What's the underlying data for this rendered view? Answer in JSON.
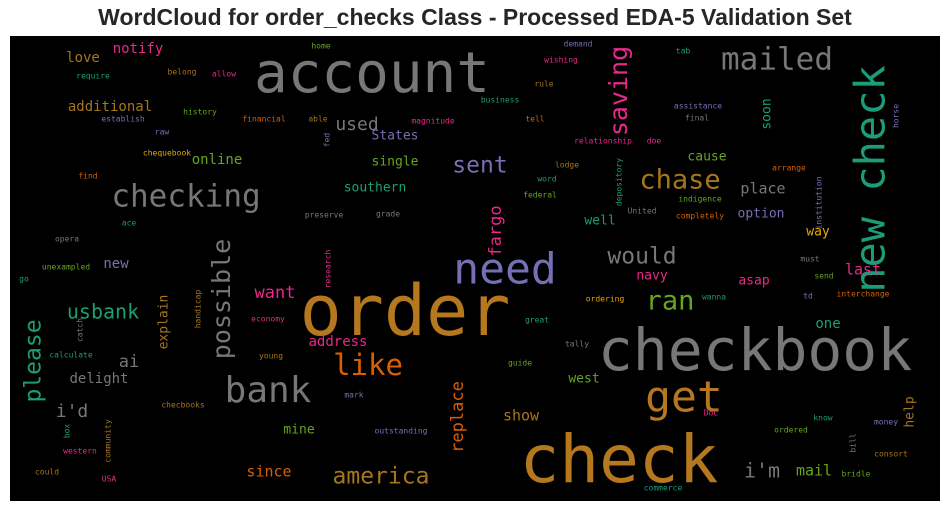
{
  "colors": {
    "background": "#000000",
    "title": "#262626",
    "gray": "#777777",
    "golden": "#b5781f",
    "green": "#1b9e77",
    "purple": "#7570b3",
    "magenta": "#e7298a",
    "orange": "#d95f02",
    "lime": "#66a61e",
    "yellow": "#e6ab02",
    "brown": "#a6761d"
  },
  "chart_data": {
    "type": "wordcloud",
    "title": "WordCloud for order_checks Class - Processed EDA-5 Validation Set",
    "words": [
      {
        "text": "order",
        "weight": 1.0,
        "color": "golden"
      },
      {
        "text": "checkbook",
        "weight": 0.92,
        "color": "gray"
      },
      {
        "text": "check",
        "weight": 0.96,
        "color": "golden"
      },
      {
        "text": "account",
        "weight": 0.88,
        "color": "gray"
      },
      {
        "text": "need",
        "weight": 0.72,
        "color": "purple"
      },
      {
        "text": "new check",
        "weight": 0.66,
        "color": "green"
      },
      {
        "text": "get",
        "weight": 0.62,
        "color": "golden"
      },
      {
        "text": "bank",
        "weight": 0.6,
        "color": "gray"
      },
      {
        "text": "checking",
        "weight": 0.5,
        "color": "gray"
      },
      {
        "text": "mailed",
        "weight": 0.5,
        "color": "gray"
      },
      {
        "text": "like",
        "weight": 0.44,
        "color": "orange"
      },
      {
        "text": "chase",
        "weight": 0.42,
        "color": "brown"
      },
      {
        "text": "ran",
        "weight": 0.42,
        "color": "lime"
      },
      {
        "text": "saving",
        "weight": 0.4,
        "color": "magenta"
      },
      {
        "text": "possible",
        "weight": 0.38,
        "color": "gray"
      },
      {
        "text": "please",
        "weight": 0.38,
        "color": "green"
      },
      {
        "text": "would",
        "weight": 0.36,
        "color": "gray"
      },
      {
        "text": "america",
        "weight": 0.36,
        "color": "brown"
      },
      {
        "text": "sent",
        "weight": 0.34,
        "color": "purple"
      },
      {
        "text": "usbank",
        "weight": 0.3,
        "color": "green"
      },
      {
        "text": "i'm",
        "weight": 0.3,
        "color": "gray"
      },
      {
        "text": "used",
        "weight": 0.28,
        "color": "gray"
      },
      {
        "text": "i'd",
        "weight": 0.28,
        "color": "gray"
      },
      {
        "text": "fargo",
        "weight": 0.27,
        "color": "magenta"
      },
      {
        "text": "replace",
        "weight": 0.27,
        "color": "orange"
      },
      {
        "text": "want",
        "weight": 0.27,
        "color": "magenta"
      },
      {
        "text": "ai",
        "weight": 0.27,
        "color": "gray"
      },
      {
        "text": "show",
        "weight": 0.26,
        "color": "brown"
      },
      {
        "text": "since",
        "weight": 0.25,
        "color": "orange"
      },
      {
        "text": "mail",
        "weight": 0.25,
        "color": "lime"
      },
      {
        "text": "place",
        "weight": 0.24,
        "color": "gray"
      },
      {
        "text": "last",
        "weight": 0.24,
        "color": "magenta"
      },
      {
        "text": "address",
        "weight": 0.23,
        "color": "magenta"
      },
      {
        "text": "online",
        "weight": 0.23,
        "color": "lime"
      },
      {
        "text": "notify",
        "weight": 0.23,
        "color": "magenta"
      },
      {
        "text": "love",
        "weight": 0.23,
        "color": "brown"
      },
      {
        "text": "additional",
        "weight": 0.22,
        "color": "brown"
      },
      {
        "text": "explain",
        "weight": 0.22,
        "color": "brown"
      },
      {
        "text": "one",
        "weight": 0.22,
        "color": "green"
      },
      {
        "text": "new",
        "weight": 0.22,
        "color": "purple"
      },
      {
        "text": "delight",
        "weight": 0.22,
        "color": "gray"
      },
      {
        "text": "west",
        "weight": 0.21,
        "color": "lime"
      },
      {
        "text": "cause",
        "weight": 0.21,
        "color": "lime"
      },
      {
        "text": "southern",
        "weight": 0.21,
        "color": "green"
      },
      {
        "text": "single",
        "weight": 0.21,
        "color": "lime"
      },
      {
        "text": "soon",
        "weight": 0.21,
        "color": "green"
      },
      {
        "text": "asap",
        "weight": 0.21,
        "color": "magenta"
      },
      {
        "text": "navy",
        "weight": 0.2,
        "color": "magenta"
      },
      {
        "text": "help",
        "weight": 0.2,
        "color": "brown"
      },
      {
        "text": "mine",
        "weight": 0.2,
        "color": "lime"
      },
      {
        "text": "well",
        "weight": 0.2,
        "color": "green"
      },
      {
        "text": "option",
        "weight": 0.2,
        "color": "purple"
      },
      {
        "text": "way",
        "weight": 0.2,
        "color": "yellow"
      },
      {
        "text": "States",
        "weight": 0.19,
        "color": "purple"
      },
      {
        "text": "raw",
        "weight": 0.1,
        "color": "purple"
      },
      {
        "text": "history",
        "weight": 0.1,
        "color": "lime"
      },
      {
        "text": "establish",
        "weight": 0.1,
        "color": "purple"
      },
      {
        "text": "require",
        "weight": 0.1,
        "color": "green"
      },
      {
        "text": "belong",
        "weight": 0.1,
        "color": "brown"
      },
      {
        "text": "allow",
        "weight": 0.1,
        "color": "magenta"
      },
      {
        "text": "home",
        "weight": 0.1,
        "color": "lime"
      },
      {
        "text": "demand",
        "weight": 0.1,
        "color": "purple"
      },
      {
        "text": "wishing",
        "weight": 0.1,
        "color": "magenta"
      },
      {
        "text": "tab",
        "weight": 0.1,
        "color": "green"
      },
      {
        "text": "rule",
        "weight": 0.1,
        "color": "brown"
      },
      {
        "text": "business",
        "weight": 0.1,
        "color": "green"
      },
      {
        "text": "assistance",
        "weight": 0.1,
        "color": "purple"
      },
      {
        "text": "final",
        "weight": 0.1,
        "color": "gray"
      },
      {
        "text": "horse",
        "weight": 0.1,
        "color": "purple"
      },
      {
        "text": "financial",
        "weight": 0.1,
        "color": "orange"
      },
      {
        "text": "able",
        "weight": 0.1,
        "color": "brown"
      },
      {
        "text": "magnitude",
        "weight": 0.1,
        "color": "magenta"
      },
      {
        "text": "tell",
        "weight": 0.1,
        "color": "orange"
      },
      {
        "text": "fed",
        "weight": 0.1,
        "color": "purple"
      },
      {
        "text": "relationship",
        "weight": 0.1,
        "color": "magenta"
      },
      {
        "text": "doe",
        "weight": 0.1,
        "color": "magenta"
      },
      {
        "text": "chequebook",
        "weight": 0.1,
        "color": "yellow"
      },
      {
        "text": "lodge",
        "weight": 0.1,
        "color": "brown"
      },
      {
        "text": "word",
        "weight": 0.1,
        "color": "green"
      },
      {
        "text": "federal",
        "weight": 0.1,
        "color": "lime"
      },
      {
        "text": "depository",
        "weight": 0.1,
        "color": "green"
      },
      {
        "text": "indigence",
        "weight": 0.1,
        "color": "lime"
      },
      {
        "text": "United",
        "weight": 0.1,
        "color": "gray"
      },
      {
        "text": "completely",
        "weight": 0.1,
        "color": "orange"
      },
      {
        "text": "arrange",
        "weight": 0.1,
        "color": "orange"
      },
      {
        "text": "institution",
        "weight": 0.1,
        "color": "purple"
      },
      {
        "text": "find",
        "weight": 0.1,
        "color": "orange"
      },
      {
        "text": "ace",
        "weight": 0.1,
        "color": "green"
      },
      {
        "text": "preserve",
        "weight": 0.1,
        "color": "gray"
      },
      {
        "text": "grade",
        "weight": 0.1,
        "color": "gray"
      },
      {
        "text": "opera",
        "weight": 0.1,
        "color": "gray"
      },
      {
        "text": "unexampled",
        "weight": 0.1,
        "color": "lime"
      },
      {
        "text": "go",
        "weight": 0.1,
        "color": "green"
      },
      {
        "text": "research",
        "weight": 0.1,
        "color": "magenta"
      },
      {
        "text": "handicap",
        "weight": 0.1,
        "color": "brown"
      },
      {
        "text": "catch",
        "weight": 0.1,
        "color": "gray"
      },
      {
        "text": "economy",
        "weight": 0.1,
        "color": "magenta"
      },
      {
        "text": "must",
        "weight": 0.1,
        "color": "gray"
      },
      {
        "text": "send",
        "weight": 0.1,
        "color": "lime"
      },
      {
        "text": "wanna",
        "weight": 0.1,
        "color": "green"
      },
      {
        "text": "td",
        "weight": 0.1,
        "color": "purple"
      },
      {
        "text": "interchange",
        "weight": 0.1,
        "color": "orange"
      },
      {
        "text": "ordering",
        "weight": 0.1,
        "color": "yellow"
      },
      {
        "text": "great",
        "weight": 0.1,
        "color": "green"
      },
      {
        "text": "calculate",
        "weight": 0.1,
        "color": "green"
      },
      {
        "text": "young",
        "weight": 0.1,
        "color": "brown"
      },
      {
        "text": "tally",
        "weight": 0.1,
        "color": "gray"
      },
      {
        "text": "guide",
        "weight": 0.1,
        "color": "lime"
      },
      {
        "text": "mark",
        "weight": 0.1,
        "color": "purple"
      },
      {
        "text": "checbooks",
        "weight": 0.1,
        "color": "brown"
      },
      {
        "text": "box",
        "weight": 0.1,
        "color": "green"
      },
      {
        "text": "community",
        "weight": 0.1,
        "color": "brown"
      },
      {
        "text": "outstanding",
        "weight": 0.1,
        "color": "purple"
      },
      {
        "text": "DoC",
        "weight": 0.1,
        "color": "magenta"
      },
      {
        "text": "know",
        "weight": 0.1,
        "color": "green"
      },
      {
        "text": "money",
        "weight": 0.1,
        "color": "purple"
      },
      {
        "text": "ordered",
        "weight": 0.1,
        "color": "lime"
      },
      {
        "text": "bill",
        "weight": 0.1,
        "color": "gray"
      },
      {
        "text": "consort",
        "weight": 0.1,
        "color": "brown"
      },
      {
        "text": "western",
        "weight": 0.1,
        "color": "magenta"
      },
      {
        "text": "could",
        "weight": 0.1,
        "color": "brown"
      },
      {
        "text": "USA",
        "weight": 0.1,
        "color": "magenta"
      },
      {
        "text": "bridle",
        "weight": 0.1,
        "color": "lime"
      },
      {
        "text": "commerce",
        "weight": 0.1,
        "color": "green"
      }
    ]
  }
}
